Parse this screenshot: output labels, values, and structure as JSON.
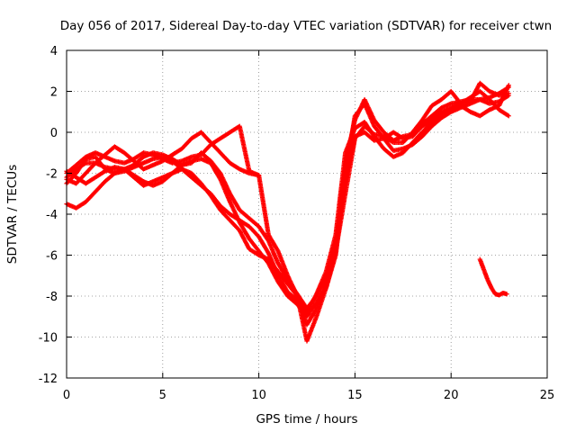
{
  "chart_data": {
    "type": "scatter",
    "title": "Day 056 of 2017, Sidereal Day-to-day VTEC variation (SDTVAR) for receiver ctwn",
    "xlabel": "GPS time / hours",
    "ylabel": "SDTVAR / TECUs",
    "xlim": [
      0,
      25
    ],
    "ylim": [
      -12,
      4
    ],
    "xticks": [
      0,
      5,
      10,
      15,
      20,
      25
    ],
    "yticks": [
      -12,
      -10,
      -8,
      -6,
      -4,
      -2,
      0,
      2,
      4
    ],
    "grid": true,
    "grid_style": "dotted",
    "marker": "+",
    "color": "#ff0000",
    "series": [
      {
        "x": [
          0.0,
          0.5,
          1.0,
          1.5,
          2.0,
          2.5,
          3.0,
          3.5,
          4.0,
          4.5,
          5.0,
          5.5,
          6.0,
          6.5,
          7.0,
          7.5,
          8.0,
          8.5,
          9.0,
          9.5,
          10.0,
          10.5,
          11.0,
          11.5,
          12.0,
          12.5,
          13.0,
          13.5,
          14.0,
          14.5,
          15.0,
          15.5,
          16.0,
          16.5,
          17.0,
          17.5,
          18.0,
          18.5,
          19.0,
          19.5,
          20.0,
          20.5,
          21.0,
          21.5,
          22.0,
          22.5,
          23.0
        ],
        "y": [
          -2.2,
          -1.8,
          -1.5,
          -1.5,
          -1.7,
          -1.8,
          -1.8,
          -1.6,
          -1.2,
          -1.0,
          -1.1,
          -1.3,
          -1.6,
          -1.5,
          -1.0,
          -1.4,
          -2.0,
          -3.0,
          -3.8,
          -4.2,
          -4.6,
          -5.3,
          -6.4,
          -7.2,
          -7.9,
          -8.6,
          -8.0,
          -7.0,
          -5.5,
          -1.5,
          0.6,
          1.6,
          0.6,
          0.0,
          -0.4,
          -0.2,
          -0.1,
          0.4,
          0.8,
          1.2,
          1.4,
          1.5,
          1.6,
          1.6,
          1.4,
          1.5,
          1.8
        ]
      },
      {
        "x": [
          0.0,
          0.5,
          1.0,
          1.5,
          2.0,
          2.5,
          3.0,
          3.5,
          4.0,
          4.5,
          5.0,
          5.5,
          6.0,
          6.5,
          7.0,
          7.5,
          8.0,
          8.5,
          9.0,
          9.5,
          10.0,
          10.5,
          11.0,
          11.5,
          12.0,
          12.5,
          13.0,
          13.5,
          14.0,
          14.5,
          15.0,
          15.5,
          16.0,
          16.5,
          17.0,
          17.5,
          18.0,
          18.5,
          19.0,
          19.5,
          20.0,
          20.5,
          21.0,
          21.5,
          22.0,
          22.5,
          23.0
        ],
        "y": [
          -3.5,
          -3.7,
          -3.4,
          -2.9,
          -2.4,
          -2.0,
          -1.8,
          -2.1,
          -2.4,
          -2.6,
          -2.4,
          -2.0,
          -1.6,
          -1.4,
          -1.3,
          -1.5,
          -2.3,
          -3.4,
          -4.4,
          -5.2,
          -5.8,
          -6.4,
          -7.3,
          -8.0,
          -8.4,
          -9.0,
          -8.3,
          -7.6,
          -6.0,
          -2.0,
          0.8,
          1.4,
          0.3,
          -0.3,
          -0.9,
          -0.8,
          -0.6,
          -0.2,
          0.3,
          0.7,
          1.0,
          1.2,
          1.4,
          1.6,
          1.7,
          1.9,
          2.2
        ]
      },
      {
        "x": [
          0.0,
          0.5,
          1.0,
          1.5,
          2.0,
          2.5,
          3.0,
          3.5,
          4.0,
          4.5,
          5.0,
          5.5,
          6.0,
          6.5,
          7.0,
          7.5,
          8.0,
          8.5,
          9.0,
          9.5,
          10.0,
          10.5,
          11.0,
          11.5,
          12.0,
          12.5,
          13.0,
          13.5,
          14.0,
          14.5,
          15.0,
          15.5,
          16.0,
          16.5,
          17.0,
          17.5,
          18.0,
          18.5,
          19.0,
          19.5,
          20.0,
          20.5,
          21.0,
          21.5,
          22.0,
          22.5,
          23.0
        ],
        "y": [
          -2.5,
          -2.0,
          -1.3,
          -1.2,
          -1.8,
          -2.0,
          -1.9,
          -1.7,
          -1.5,
          -1.3,
          -1.2,
          -1.4,
          -1.8,
          -2.2,
          -2.6,
          -3.0,
          -3.6,
          -4.0,
          -4.3,
          -4.6,
          -5.1,
          -5.9,
          -7.0,
          -7.8,
          -8.2,
          -8.8,
          -7.9,
          -6.8,
          -5.0,
          -1.0,
          0.2,
          0.5,
          -0.2,
          -0.8,
          -1.2,
          -1.0,
          -0.5,
          0.0,
          0.5,
          0.9,
          1.1,
          1.3,
          1.0,
          0.8,
          1.1,
          1.3,
          2.3
        ]
      },
      {
        "x": [
          0.0,
          0.5,
          1.0,
          1.5,
          2.0,
          2.5,
          3.0,
          3.5,
          4.0,
          4.5,
          5.0,
          5.5,
          6.0,
          6.5,
          7.0,
          7.5,
          8.0,
          8.5,
          9.0,
          9.5,
          10.0,
          10.5,
          11.0,
          11.5,
          12.0,
          12.5,
          13.0,
          13.5,
          14.0,
          14.5,
          15.0,
          15.5,
          16.0,
          16.5,
          17.0,
          17.5,
          18.0,
          18.5,
          19.0,
          19.5,
          20.0,
          20.5,
          21.0,
          21.5,
          22.0,
          22.5,
          23.0
        ],
        "y": [
          -1.9,
          -2.2,
          -2.5,
          -2.2,
          -1.9,
          -1.7,
          -1.8,
          -2.2,
          -2.6,
          -2.4,
          -2.2,
          -2.0,
          -1.8,
          -2.0,
          -2.5,
          -3.1,
          -3.8,
          -4.3,
          -4.8,
          -5.7,
          -6.0,
          -6.2,
          -6.8,
          -7.4,
          -8.0,
          -9.4,
          -8.6,
          -7.3,
          -5.6,
          -2.5,
          -0.2,
          0.0,
          -0.4,
          -0.3,
          0.0,
          -0.3,
          -0.2,
          0.3,
          0.6,
          1.0,
          1.2,
          1.4,
          1.7,
          2.0,
          1.6,
          1.1,
          0.8
        ]
      },
      {
        "x": [
          0.0,
          0.5,
          1.0,
          1.5,
          2.0,
          2.5,
          3.0,
          3.5,
          4.0,
          4.5,
          5.0,
          5.5,
          6.0,
          6.5,
          7.0,
          7.5,
          8.0,
          8.5,
          9.0,
          9.5,
          10.0,
          10.5,
          11.0,
          11.5,
          12.0,
          12.5,
          13.0,
          13.5,
          14.0,
          14.5,
          15.0,
          15.5,
          16.0,
          16.5,
          17.0,
          17.5,
          18.0,
          18.5,
          19.0,
          19.5,
          20.0,
          20.5,
          21.0,
          21.5,
          22.0,
          22.5,
          23.0
        ],
        "y": [
          -2.3,
          -2.5,
          -2.0,
          -1.5,
          -1.1,
          -0.7,
          -1.0,
          -1.4,
          -1.8,
          -1.6,
          -1.4,
          -1.1,
          -0.8,
          -0.3,
          0.0,
          -0.5,
          -1.0,
          -1.5,
          -1.8,
          -2.0,
          -2.1,
          -5.0,
          -5.8,
          -7.0,
          -8.0,
          -10.2,
          -9.0,
          -7.6,
          -5.8,
          -3.0,
          -0.3,
          0.3,
          -0.1,
          -0.2,
          -0.5,
          -0.5,
          0.0,
          0.6,
          1.3,
          1.6,
          2.0,
          1.4,
          1.5,
          2.4,
          2.0,
          1.8,
          1.9
        ]
      },
      {
        "x": [
          0.0,
          0.5,
          1.0,
          1.5,
          2.0,
          2.5,
          3.0,
          3.5,
          4.0,
          4.5,
          5.0,
          5.5,
          6.0,
          6.5,
          7.0,
          7.5,
          8.0,
          8.5,
          9.0,
          9.5,
          10.0
        ],
        "y": [
          -2.0,
          -1.6,
          -1.2,
          -1.0,
          -1.2,
          -1.4,
          -1.5,
          -1.3,
          -1.0,
          -1.1,
          -1.3,
          -1.5,
          -1.4,
          -1.2,
          -1.1,
          -0.6,
          -0.3,
          0.0,
          0.3,
          -1.9,
          -2.1
        ]
      },
      {
        "x": [
          21.5,
          21.7,
          21.9,
          22.1,
          22.3,
          22.5,
          22.7,
          22.9
        ],
        "y": [
          -6.2,
          -6.7,
          -7.2,
          -7.6,
          -7.9,
          -7.95,
          -7.85,
          -7.9
        ]
      }
    ]
  }
}
